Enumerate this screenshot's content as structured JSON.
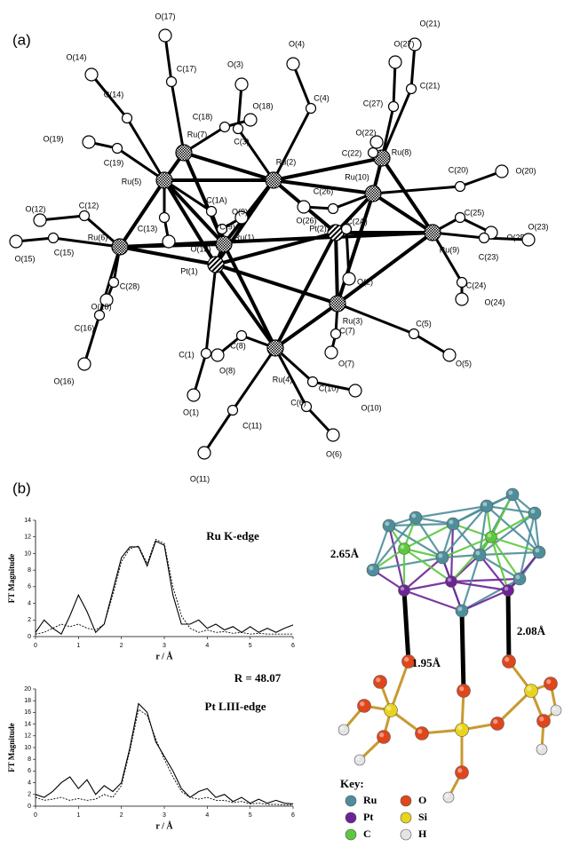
{
  "panel_a": {
    "label": "(a)",
    "atoms": [
      "Ru(7)",
      "Ru(5)",
      "Ru(2)",
      "Ru(8)",
      "Ru(10)",
      "Ru(6)",
      "Ru(1)",
      "Pt(1)",
      "Pt(2)",
      "Ru(9)",
      "Ru(3)",
      "Ru(4)",
      "C(17)",
      "O(17)",
      "C(14)",
      "O(14)",
      "C(3)",
      "O(3)",
      "C(18)",
      "O(18)",
      "C(19)",
      "O(19)",
      "C(4)",
      "O(4)",
      "C(21)",
      "O(21)",
      "C(27)",
      "O(27)",
      "C(22)",
      "O(22)",
      "C(20)",
      "O(20)",
      "C(25)",
      "O(25)",
      "C(23)",
      "O(23)",
      "C(24)",
      "O(24)",
      "C(5)",
      "O(5)",
      "C(26)",
      "O(26)",
      "C(2A)",
      "O(2)",
      "C(7)",
      "O(7)",
      "C(10)",
      "O(10)",
      "C(6)",
      "O(6)",
      "C(11)",
      "O(11)",
      "C(8)",
      "O(8)",
      "C(1)",
      "O(1)",
      "C(16)",
      "O(16)",
      "C(28)",
      "O(28)",
      "C(13)",
      "O(13)",
      "C(9)",
      "O(9)",
      "C(1A)",
      "C(12)",
      "O(12)",
      "C(15)",
      "O(15)"
    ]
  },
  "panel_b": {
    "label": "(b)"
  },
  "chart_data": [
    {
      "type": "line",
      "title": "Ru K-edge",
      "x_label": "r / Å",
      "y_label": "FT Magnitude",
      "annotation": "R = 48.07",
      "xlim": [
        0,
        6
      ],
      "xticks": [
        0,
        1,
        2,
        3,
        4,
        5,
        6
      ],
      "ylim": [
        0,
        14
      ],
      "yticks": [
        0,
        2,
        4,
        6,
        8,
        10,
        12,
        14
      ],
      "x": [
        0,
        0.2,
        0.4,
        0.6,
        0.8,
        1,
        1.2,
        1.4,
        1.6,
        1.8,
        2,
        2.2,
        2.4,
        2.6,
        2.8,
        3,
        3.2,
        3.4,
        3.6,
        3.8,
        4,
        4.2,
        4.4,
        4.6,
        4.8,
        5,
        5.2,
        5.4,
        5.6,
        5.8,
        6
      ],
      "series": [
        {
          "color": "#000000",
          "style": "solid",
          "values": [
            0.5,
            2,
            1,
            0.3,
            2.5,
            5,
            3,
            0.5,
            1.5,
            5.5,
            9.5,
            10.8,
            10.8,
            8.5,
            11.5,
            11,
            5,
            1.5,
            1.5,
            2,
            1,
            1.5,
            0.8,
            1.2,
            0.5,
            1.2,
            0.5,
            1,
            0.5,
            1,
            1.4
          ]
        },
        {
          "color": "#000000",
          "style": "dashed",
          "values": [
            0.3,
            0.5,
            1,
            1.5,
            1.2,
            1.5,
            1,
            0.8,
            1.5,
            5,
            9,
            10.6,
            10.9,
            8.8,
            11.7,
            11.2,
            6,
            2.5,
            1,
            0.5,
            0.8,
            0.5,
            0.6,
            0.4,
            0.5,
            0.3,
            0.4,
            0.3,
            0.3,
            0.3,
            0.3
          ]
        }
      ]
    },
    {
      "type": "line",
      "title": "Pt LIII-edge",
      "x_label": "r / Å",
      "y_label": "FT Magnitude",
      "xlim": [
        0,
        6
      ],
      "xticks": [
        0,
        1,
        2,
        3,
        4,
        5,
        6
      ],
      "ylim": [
        0,
        20
      ],
      "yticks": [
        0,
        2,
        4,
        6,
        8,
        10,
        12,
        14,
        16,
        18,
        20
      ],
      "x": [
        0,
        0.2,
        0.4,
        0.6,
        0.8,
        1,
        1.2,
        1.4,
        1.6,
        1.8,
        2,
        2.2,
        2.4,
        2.6,
        2.8,
        3,
        3.2,
        3.4,
        3.6,
        3.8,
        4,
        4.2,
        4.4,
        4.6,
        4.8,
        5,
        5.2,
        5.4,
        5.6,
        5.8,
        6
      ],
      "series": [
        {
          "color": "#000000",
          "style": "solid",
          "values": [
            2,
            1.5,
            2.5,
            4,
            5,
            3,
            4.5,
            2,
            3.5,
            2.5,
            4,
            10,
            17.5,
            16,
            11,
            8.5,
            6,
            3,
            1.5,
            2.5,
            3,
            1.5,
            2,
            0.8,
            1.5,
            0.5,
            1.2,
            0.5,
            1,
            0.5,
            0.4
          ]
        },
        {
          "color": "#000000",
          "style": "dashed",
          "values": [
            1.5,
            1,
            1.2,
            1.5,
            1,
            1.3,
            1,
            1.2,
            2,
            1.5,
            3.5,
            9.5,
            16.5,
            15.5,
            11.5,
            8,
            5,
            2.5,
            1.5,
            1.2,
            1.5,
            1,
            1,
            0.6,
            0.8,
            0.4,
            0.5,
            0.3,
            0.3,
            0.2,
            0.2
          ]
        }
      ]
    }
  ],
  "model": {
    "distances": [
      "2.65Å",
      "2.08Å",
      "1.95Å"
    ],
    "key_title": "Key:",
    "key": [
      {
        "label": "Ru",
        "color": "#4d8e9b"
      },
      {
        "label": "Pt",
        "color": "#6b2396"
      },
      {
        "label": "C",
        "color": "#5cc83c"
      },
      {
        "label": "O",
        "color": "#e0461c"
      },
      {
        "label": "Si",
        "color": "#e8d41c"
      },
      {
        "label": "H",
        "color": "#e4e4e4"
      }
    ]
  }
}
